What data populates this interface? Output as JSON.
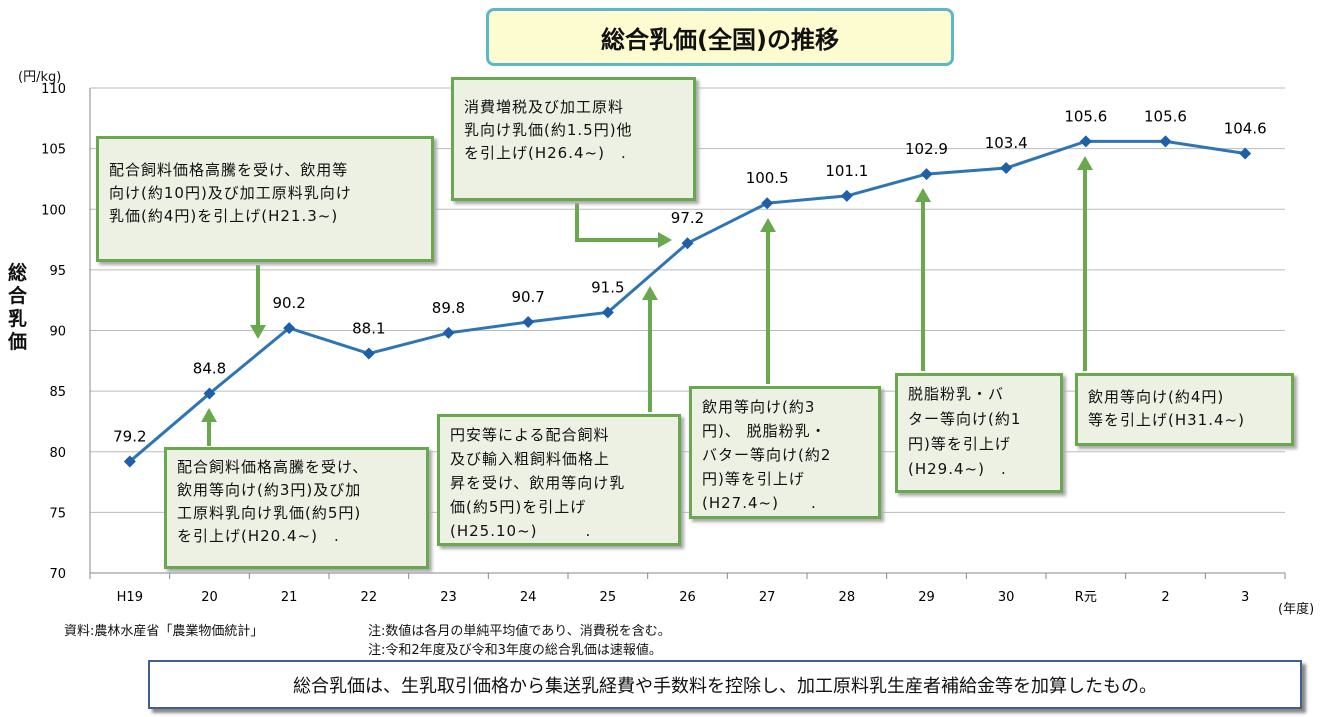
{
  "title": "総合乳価(全国)の推移",
  "y_unit": "(円/kg)",
  "y_axis_label": "総合乳価",
  "x_unit": "(年度)",
  "chart_data": {
    "type": "line",
    "title": "総合乳価(全国)の推移",
    "xlabel": "(年度)",
    "ylabel": "総合乳価",
    "categories": [
      "H19",
      "20",
      "21",
      "22",
      "23",
      "24",
      "25",
      "26",
      "27",
      "28",
      "29",
      "30",
      "R元",
      "2",
      "3"
    ],
    "values": [
      79.2,
      84.8,
      90.2,
      88.1,
      89.8,
      90.7,
      91.5,
      97.2,
      100.5,
      101.1,
      102.9,
      103.4,
      105.6,
      105.6,
      104.6
    ],
    "data_labels": [
      "79.2",
      "84.8",
      "90.2",
      "88.1",
      "89.8",
      "90.7",
      "91.5",
      "97.2",
      "100.5",
      "101.1",
      "102.9",
      "103.4",
      "105.6",
      "105.6",
      "104.6"
    ],
    "ylim": [
      70,
      110
    ],
    "yticks": [
      "70",
      "75",
      "80",
      "85",
      "90",
      "95",
      "100",
      "105",
      "110"
    ],
    "grid": true,
    "color": "#2e75b6"
  },
  "callouts": [
    "配合飼料価格高騰を受け、飲用等\n向け(約10円)及び加工原料乳向け\n乳価(約4円)を引上げ(H21.3~)",
    "配合飼料価格高騰を受け、\n飲用等向け(約3円)及び加\n工原料乳向け乳価(約5円)\nを引上げ(H20.4~)　.",
    "消費増税及び加工原料\n乳向け乳価(約1.5円)他\nを引上げ(H26.4~)　.",
    "円安等による配合飼料\n及び輸入粗飼料価格上\n昇を受け、飲用等向け乳\n価(約5円)を引上げ\n(H25.10~)　　　.",
    "飲用等向け(約3\n円)、 脱脂粉乳・\nバター等向け(約2\n円)等を引上げ\n(H27.4~)　　.",
    "脱脂粉乳・バ\nター等向け(約1\n円)等を引上げ\n(H29.4~)　.",
    "飲用等向け(約4円)\n等を引上げ(H31.4~)"
  ],
  "notes": {
    "source": "資料:農林水産省「農業物価統計」",
    "note1": "注:数値は各月の単純平均値であり、消費税を含む。",
    "note2": "注:令和2年度及び令和3年度の総合乳価は速報値。"
  },
  "footer": "総合乳価は、生乳取引価格から集送乳経費や手数料を控除し、加工原料乳生産者補給金等を加算したもの。"
}
